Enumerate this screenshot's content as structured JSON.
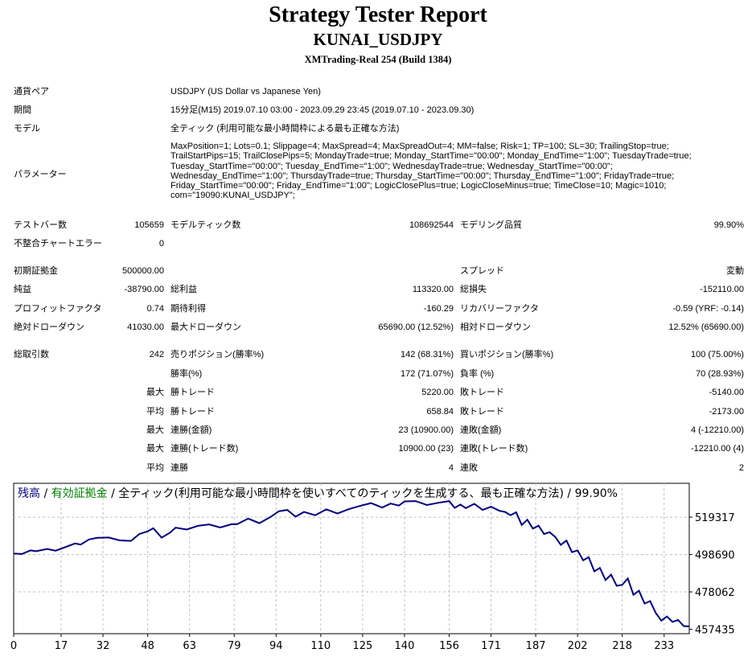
{
  "header": {
    "title": "Strategy Tester Report",
    "expert": "KUNAI_USDJPY",
    "server": "XMTrading-Real 254 (Build 1384)"
  },
  "info": {
    "symbol_label": "通貨ペア",
    "symbol_value": "USDJPY (US Dollar vs Japanese Yen)",
    "period_label": "期間",
    "period_value": "15分足(M15) 2019.07.10 03:00 - 2023.09.29 23:45 (2019.07.10 - 2023.09.30)",
    "model_label": "モデル",
    "model_value": "全ティック (利用可能な最小時間枠による最も正確な方法)",
    "params_label": "パラメーター",
    "params_value": "MaxPosition=1; Lots=0.1; Slippage=4; MaxSpread=4; MaxSpreadOut=4; MM=false; Risk=1; TP=100; SL=30; TrailingStop=true;\nTrailStartPips=15; TrailClosePips=5; MondayTrade=true; Monday_StartTime=\"00:00\"; Monday_EndTime=\"1:00\"; TuesdayTrade=true;\nTuesday_StartTime=\"00:00\"; Tuesday_EndTime=\"1:00\"; WednesdayTrade=true; Wednesday_StartTime=\"00:00\";\nWednesday_EndTime=\"1:00\"; ThursdayTrade=true; Thursday_StartTime=\"00:00\"; Thursday_EndTime=\"1:00\"; FridayTrade=true;\nFriday_StartTime=\"00:00\"; Friday_EndTime=\"1:00\"; LogicClosePlus=true; LogicCloseMinus=true; TimeClose=10; Magic=1010;\ncom=\"19090:KUNAI_USDJPY\";"
  },
  "stats": {
    "bars_label": "テストバー数",
    "bars_value": "105659",
    "ticks_label": "モデルティック数",
    "ticks_value": "108692544",
    "quality_label": "モデリング品質",
    "quality_value": "99.90%",
    "mismatch_label": "不整合チャートエラー",
    "mismatch_value": "0",
    "deposit_label": "初期証拠金",
    "deposit_value": "500000.00",
    "spread_label": "スプレッド",
    "spread_value": "変動",
    "net_label": "純益",
    "net_value": "-38790.00",
    "gross_profit_label": "総利益",
    "gross_profit_value": "113320.00",
    "gross_loss_label": "総損失",
    "gross_loss_value": "-152110.00",
    "pf_label": "プロフィットファクタ",
    "pf_value": "0.74",
    "payoff_label": "期待利得",
    "payoff_value": "-160.29",
    "recovery_label": "リカバリーファクタ",
    "recovery_value": "-0.59 (YRF: -0.14)",
    "abs_dd_label": "絶対ドローダウン",
    "abs_dd_value": "41030.00",
    "max_dd_label": "最大ドローダウン",
    "max_dd_value": "65690.00 (12.52%)",
    "rel_dd_label": "相対ドローダウン",
    "rel_dd_value": "12.52% (65690.00)"
  },
  "trades": {
    "total_label": "総取引数",
    "total_value": "242",
    "short_label": "売りポジション(勝率%)",
    "short_value": "142 (68.31%)",
    "long_label": "買いポジション(勝率%)",
    "long_value": "100 (75.00%)",
    "winrate_label": "勝率(%)",
    "winrate_value": "172 (71.07%)",
    "lossrate_label": "負率 (%)",
    "lossrate_value": "70 (28.93%)",
    "max_word": "最大",
    "avg_word": "平均",
    "largest_win_label": "勝トレード",
    "largest_win_value": "5220.00",
    "largest_loss_label": "敗トレード",
    "largest_loss_value": "-5140.00",
    "avg_win_label": "勝トレード",
    "avg_win_value": "658.84",
    "avg_loss_label": "敗トレード",
    "avg_loss_value": "-2173.00",
    "max_cons_wins_label": "連勝(金額)",
    "max_cons_wins_value": "23 (10900.00)",
    "max_cons_losses_label": "連敗(金額)",
    "max_cons_losses_value": "4 (-12210.00)",
    "max_cons_profit_label": "連勝(トレード数)",
    "max_cons_profit_value": "10900.00 (23)",
    "max_cons_loss_label": "連敗(トレード数)",
    "max_cons_loss_value": "-12210.00 (4)",
    "avg_cons_wins_label": "連勝",
    "avg_cons_wins_value": "4",
    "avg_cons_losses_label": "連敗",
    "avg_cons_losses_value": "2"
  },
  "chart_data": {
    "type": "line",
    "legend": {
      "balance": "残高",
      "sep1": " / ",
      "equity": "有効証拠金",
      "sep2": " / ",
      "rest": "全ティック(利用可能な最小時間枠を使いすべてのティックを生成する、最も正確な方法) / 99.90%"
    },
    "colors": {
      "line": "#000080",
      "balance_text": "#000080",
      "equity_text": "#008000",
      "grid": "#c0c0c0"
    },
    "x_ticks": [
      "0",
      "17",
      "32",
      "48",
      "63",
      "79",
      "94",
      "110",
      "125",
      "140",
      "156",
      "171",
      "187",
      "202",
      "218",
      "233"
    ],
    "y_ticks": [
      "519317",
      "498690",
      "478062",
      "457435"
    ],
    "x_range": [
      0,
      242
    ],
    "y_range": [
      455000,
      538000
    ],
    "series": [
      {
        "x": [
          0,
          3,
          6,
          8,
          12,
          15,
          18,
          22,
          24,
          27,
          30,
          34,
          38,
          42,
          45,
          48,
          50,
          53,
          56,
          58,
          62,
          66,
          70,
          74,
          78,
          80,
          84,
          88,
          92,
          95,
          98,
          101,
          104,
          108,
          112,
          116,
          120,
          124,
          128,
          132,
          135,
          138,
          140,
          144,
          148,
          152,
          156,
          158,
          160,
          162,
          165,
          168,
          171,
          174,
          176,
          178,
          180,
          182,
          184,
          186,
          188,
          190,
          192,
          194,
          196,
          198,
          200,
          202,
          204,
          206,
          208,
          210,
          212,
          214,
          216,
          218,
          220,
          222,
          224,
          226,
          228,
          230,
          232,
          234,
          236,
          238,
          240,
          242
        ],
        "y": [
          499200,
          499000,
          501000,
          500500,
          501800,
          500800,
          502500,
          504800,
          504200,
          507000,
          507900,
          508100,
          506500,
          506200,
          510000,
          511500,
          513200,
          508000,
          510800,
          513500,
          512500,
          514500,
          515300,
          513600,
          515400,
          515400,
          518500,
          516000,
          519400,
          522600,
          523300,
          519600,
          522200,
          520400,
          523600,
          521300,
          523700,
          525500,
          527100,
          524600,
          526800,
          525700,
          528000,
          528200,
          526000,
          527200,
          528200,
          524400,
          526300,
          524300,
          526700,
          523300,
          525100,
          522800,
          522200,
          520400,
          522000,
          515000,
          517900,
          513000,
          514600,
          510000,
          511000,
          508400,
          504000,
          506400,
          500000,
          501000,
          495500,
          497200,
          489400,
          491300,
          484600,
          487600,
          481400,
          482000,
          485500,
          476500,
          478700,
          471600,
          473000,
          466500,
          462200,
          464500,
          461500,
          462600,
          459200,
          459000
        ]
      }
    ]
  }
}
